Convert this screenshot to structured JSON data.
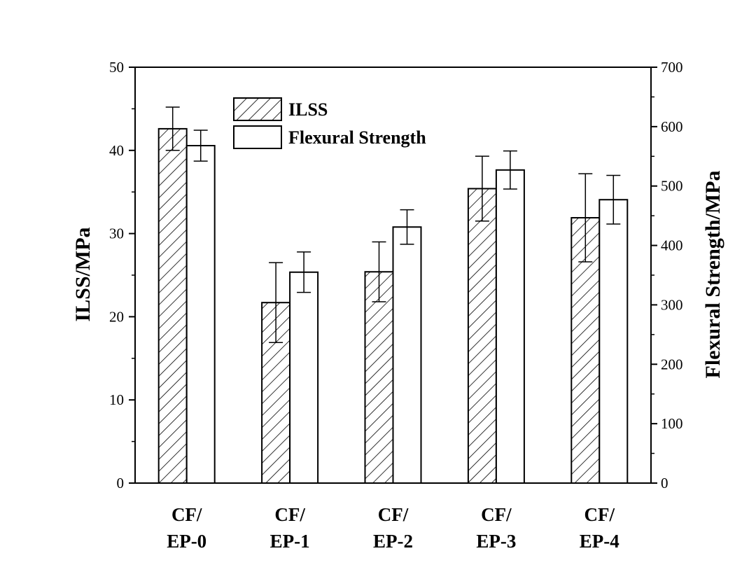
{
  "chart_data": {
    "type": "bar",
    "categories": [
      [
        "CF/",
        "EP-0"
      ],
      [
        "CF/",
        "EP-1"
      ],
      [
        "CF/",
        "EP-2"
      ],
      [
        "CF/",
        "EP-3"
      ],
      [
        "CF/",
        "EP-4"
      ]
    ],
    "series": [
      {
        "name": "ILSS",
        "axis": "left",
        "pattern": "hatched",
        "values": [
          42.6,
          21.7,
          25.4,
          35.4,
          31.9
        ],
        "errors": [
          2.6,
          4.8,
          3.6,
          3.9,
          5.3
        ]
      },
      {
        "name": "Flexural Strength",
        "axis": "right",
        "pattern": "open",
        "values": [
          568,
          355,
          431,
          527,
          477
        ],
        "errors": [
          26,
          34,
          29,
          32,
          41
        ]
      }
    ],
    "ylabel": "ILSS/MPa",
    "ylabel_right": "Flexural Strength/MPa",
    "ylim": [
      0,
      50
    ],
    "ylim_right": [
      0,
      700
    ],
    "yticks": [
      0,
      10,
      20,
      30,
      40,
      50
    ],
    "yticks_right": [
      0,
      100,
      200,
      300,
      400,
      500,
      600,
      700
    ],
    "legend_position": "top-left",
    "grid": false
  },
  "colors": {
    "stroke": "#000000",
    "fill": "#ffffff"
  }
}
